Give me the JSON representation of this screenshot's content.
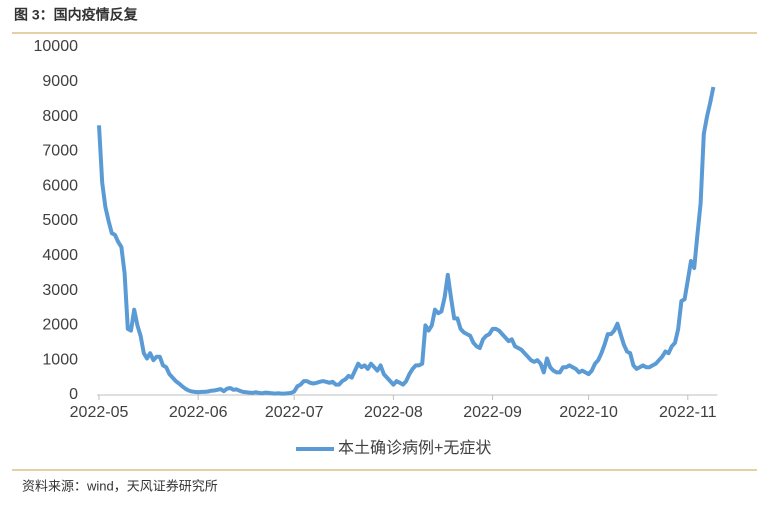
{
  "chart_data": {
    "type": "line",
    "title": "图 3：国内疫情反复",
    "source": "资料来源：wind，天风证券研究所",
    "categories": [
      "2022-05",
      null,
      null,
      null,
      null,
      null,
      null,
      null,
      null,
      null,
      null,
      null,
      null,
      null,
      null,
      null,
      null,
      null,
      null,
      null,
      null,
      null,
      null,
      null,
      null,
      null,
      null,
      null,
      null,
      null,
      null,
      "2022-06",
      null,
      null,
      null,
      null,
      null,
      null,
      null,
      null,
      null,
      null,
      null,
      null,
      null,
      null,
      null,
      null,
      null,
      null,
      null,
      null,
      null,
      null,
      null,
      null,
      null,
      null,
      null,
      null,
      null,
      "2022-07",
      null,
      null,
      null,
      null,
      null,
      null,
      null,
      null,
      null,
      null,
      null,
      null,
      null,
      null,
      null,
      null,
      null,
      null,
      null,
      null,
      null,
      null,
      null,
      null,
      null,
      null,
      null,
      null,
      null,
      null,
      "2022-08",
      null,
      null,
      null,
      null,
      null,
      null,
      null,
      null,
      null,
      null,
      null,
      null,
      null,
      null,
      null,
      null,
      null,
      null,
      null,
      null,
      null,
      null,
      null,
      null,
      null,
      null,
      null,
      null,
      null,
      null,
      "2022-09",
      null,
      null,
      null,
      null,
      null,
      null,
      null,
      null,
      null,
      null,
      null,
      null,
      null,
      null,
      null,
      null,
      null,
      null,
      null,
      null,
      null,
      null,
      null,
      null,
      null,
      null,
      null,
      null,
      null,
      "2022-10",
      null,
      null,
      null,
      null,
      null,
      null,
      null,
      null,
      null,
      null,
      null,
      null,
      null,
      null,
      null,
      null,
      null,
      null,
      null,
      null,
      null,
      null,
      null,
      null,
      null,
      null,
      null,
      null,
      null,
      null,
      "2022-11",
      null,
      null,
      null,
      null,
      null,
      null,
      null,
      null
    ],
    "series": [
      {
        "name": "本土确诊病例+无症状",
        "color": "#5b9bd5",
        "values": [
          7750,
          6100,
          5400,
          5000,
          4650,
          4600,
          4400,
          4250,
          3500,
          1900,
          1850,
          2450,
          2000,
          1700,
          1200,
          1050,
          1200,
          1000,
          1100,
          1100,
          850,
          800,
          600,
          500,
          400,
          330,
          250,
          180,
          130,
          100,
          90,
          80,
          90,
          90,
          100,
          120,
          130,
          150,
          170,
          110,
          180,
          200,
          150,
          160,
          120,
          90,
          80,
          70,
          60,
          80,
          60,
          50,
          70,
          60,
          50,
          40,
          50,
          40,
          40,
          50,
          60,
          100,
          250,
          300,
          400,
          400,
          350,
          330,
          350,
          380,
          400,
          380,
          350,
          380,
          300,
          300,
          400,
          450,
          550,
          500,
          700,
          900,
          800,
          850,
          750,
          900,
          800,
          700,
          850,
          600,
          500,
          400,
          300,
          400,
          350,
          300,
          400,
          600,
          750,
          850,
          850,
          900,
          2000,
          1850,
          2000,
          2450,
          2350,
          2400,
          2800,
          3450,
          2800,
          2200,
          2200,
          1900,
          1800,
          1750,
          1700,
          1500,
          1400,
          1350,
          1600,
          1700,
          1750,
          1900,
          1900,
          1850,
          1750,
          1650,
          1550,
          1600,
          1400,
          1350,
          1300,
          1200,
          1100,
          1000,
          950,
          1000,
          900,
          650,
          1050,
          800,
          700,
          650,
          650,
          800,
          800,
          850,
          800,
          750,
          650,
          700,
          650,
          600,
          700,
          900,
          1000,
          1200,
          1450,
          1750,
          1750,
          1850,
          2050,
          1750,
          1450,
          1250,
          1200,
          850,
          750,
          800,
          850,
          800,
          800,
          850,
          900,
          1000,
          1100,
          1250,
          1200,
          1400,
          1500,
          1900,
          2700,
          2750,
          3300,
          3850,
          3650,
          4600,
          5500,
          7500,
          8000,
          8400,
          8850
        ]
      }
    ],
    "ylim": [
      0,
      10000
    ],
    "yticks": [
      0,
      1000,
      2000,
      3000,
      4000,
      5000,
      6000,
      7000,
      8000,
      9000,
      10000
    ]
  }
}
